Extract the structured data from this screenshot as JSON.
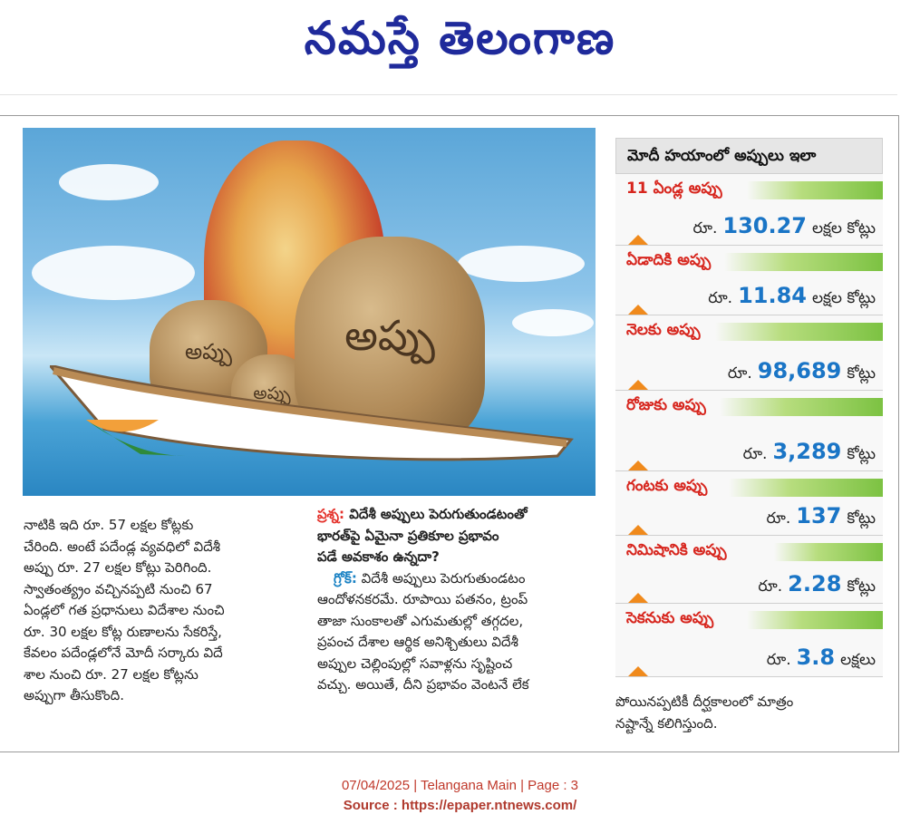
{
  "masthead": {
    "title": "నమస్తే తెలంగాణ"
  },
  "photo": {
    "bag_labels": [
      "అప్పు",
      "అప్పు",
      "అప్పు"
    ]
  },
  "col1": {
    "lines": [
      "నాటికి ఇది రూ. 57 లక్షల కోట్లకు",
      "చేరింది. అంటే పదేండ్ల వ్యవధిలో విదేశీ",
      "అప్పు రూ. 27 లక్షల కోట్లు పెరిగింది.",
      "స్వాతంత్య్రం వచ్చినప్పటి నుంచి 67",
      "ఏండ్లలో గత ప్రధానులు విదేశాల నుంచి",
      "రూ. 30 లక్షల కోట్ల రుణాలను సేకరిస్తే,",
      "కేవలం పదేండ్లలోనే మోదీ సర్కారు విదే",
      "శాల నుంచి రూ. 27 లక్షల కోట్లను",
      "అప్పుగా తీసుకొంది."
    ]
  },
  "col2": {
    "q_tag": "ప్రశ్న:",
    "q_lines": [
      " విదేశీ అప్పులు పెరుగుతుండటంతో",
      "భారత్‌పై ఏమైనా ప్రతికూల ప్రభావం",
      "పడే అవకాశం ఉన్నదా?"
    ],
    "a_tag": "గ్రోక్:",
    "a_lines": [
      " విదేశీ అప్పులు పెరుగుతుండటం",
      "ఆందోళనకరమే. రూపాయి పతనం, ట్రంప్",
      "తాజా సుంకాలతో ఎగుమతుల్లో తగ్గదల,",
      "ప్రపంచ దేశాల ఆర్థిక అనిశ్చితులు విదేశీ",
      "అప్పుల చెల్లింపుల్లో సవాళ్లను సృష్టించ",
      "వచ్చు. అయితే, దీని ప్రభావం వెంటనే లేక"
    ]
  },
  "col3": {
    "lines": [
      "పోయినప్పటికీ దీర్ఘకాలంలో మాత్రం",
      "నష్టాన్నే కలిగిస్తుంది."
    ]
  },
  "sidebar": {
    "title": "మోదీ హయాంలో అప్పులు ఇలా",
    "items": [
      {
        "label": "11 ఏండ్ల అప్పు",
        "prefix": "రూ.",
        "value": "130.27",
        "unit": "లక్షల కోట్లు"
      },
      {
        "label": "ఏడాదికి అప్పు",
        "prefix": "రూ.",
        "value": "11.84",
        "unit": "లక్షల కోట్లు"
      },
      {
        "label": "నెలకు అప్పు",
        "prefix": "రూ.",
        "value": "98,689",
        "unit": "కోట్లు"
      },
      {
        "label": "రోజుకు అప్పు",
        "prefix": "రూ.",
        "value": "3,289",
        "unit": "కోట్లు"
      },
      {
        "label": "గంటకు అప్పు",
        "prefix": "రూ.",
        "value": "137",
        "unit": "కోట్లు"
      },
      {
        "label": "నిమిషానికి అప్పు",
        "prefix": "రూ.",
        "value": "2.28",
        "unit": "కోట్లు"
      },
      {
        "label": "సెకనుకు అప్పు",
        "prefix": "రూ.",
        "value": "3.8",
        "unit": "లక్షలు"
      }
    ]
  },
  "footer": {
    "line1": "07/04/2025 | Telangana Main | Page : 3",
    "line2": "Source : https://epaper.ntnews.com/"
  },
  "colors": {
    "masthead": "#1f2a9b",
    "label_red": "#d7261e",
    "number_blue": "#1a75c6",
    "bar_green": "#7cc242",
    "arrow_orange": "#f08a1c"
  }
}
